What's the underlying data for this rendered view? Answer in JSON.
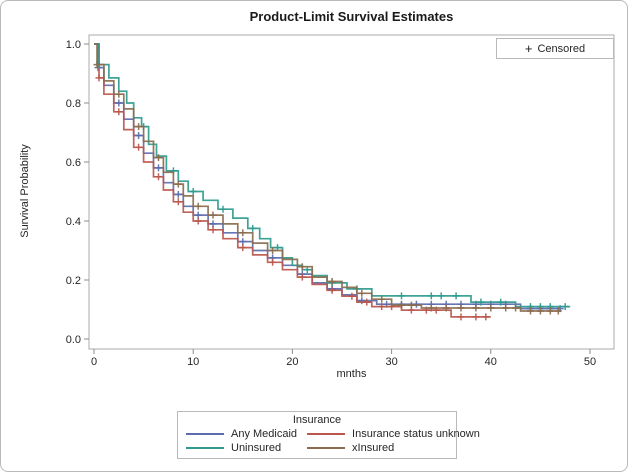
{
  "censored_box": {
    "marker": "+",
    "label": "Censored"
  },
  "legend": {
    "title": "Insurance"
  },
  "colors": {
    "frame": "#ababab",
    "tick": "#8c8c8c",
    "text": "#262626",
    "series_blue": "#5b6cae",
    "series_red": "#bb574d",
    "series_teal": "#2f9a8d",
    "series_brown": "#8b6b4d"
  },
  "chart_data": {
    "type": "line",
    "subtype": "kaplan-meier-step-survival",
    "title": "Product-Limit Survival Estimates",
    "xlabel": "mnths",
    "ylabel": "Survival Probability",
    "xlim": [
      0,
      50
    ],
    "ylim": [
      0.0,
      1.0
    ],
    "xticks": [
      0,
      10,
      20,
      30,
      40,
      50
    ],
    "yticks": [
      0.0,
      0.2,
      0.4,
      0.6,
      0.8,
      1.0
    ],
    "xtick_labels": [
      "0",
      "10",
      "20",
      "30",
      "40",
      "50"
    ],
    "ytick_labels": [
      "0.0",
      "0.2",
      "0.4",
      "0.6",
      "0.8",
      "1.0"
    ],
    "grid": false,
    "legend_position": "bottom",
    "legend_title": "Insurance",
    "censored_marker": "+",
    "series": [
      {
        "name": "Any Medicaid",
        "color": "#5b6cae",
        "steps": [
          [
            0,
            1.0
          ],
          [
            0.4,
            0.92
          ],
          [
            1,
            0.86
          ],
          [
            2,
            0.8
          ],
          [
            3,
            0.745
          ],
          [
            4,
            0.69
          ],
          [
            5,
            0.63
          ],
          [
            6,
            0.58
          ],
          [
            7,
            0.53
          ],
          [
            8,
            0.49
          ],
          [
            9,
            0.45
          ],
          [
            10,
            0.42
          ],
          [
            11.5,
            0.39
          ],
          [
            13,
            0.36
          ],
          [
            14.5,
            0.33
          ],
          [
            16,
            0.3
          ],
          [
            17.5,
            0.275
          ],
          [
            19,
            0.25
          ],
          [
            20.5,
            0.22
          ],
          [
            22,
            0.19
          ],
          [
            23.5,
            0.17
          ],
          [
            25,
            0.15
          ],
          [
            26.5,
            0.13
          ],
          [
            28.5,
            0.118
          ],
          [
            43,
            0.103
          ],
          [
            47,
            0.103
          ]
        ],
        "censored": [
          [
            0.4,
            0.92
          ],
          [
            2.5,
            0.8
          ],
          [
            4.5,
            0.69
          ],
          [
            6.5,
            0.58
          ],
          [
            8.5,
            0.49
          ],
          [
            10.5,
            0.42
          ],
          [
            12,
            0.39
          ],
          [
            15,
            0.33
          ],
          [
            18,
            0.275
          ],
          [
            21,
            0.22
          ],
          [
            24,
            0.17
          ],
          [
            27,
            0.13
          ],
          [
            29.5,
            0.118
          ],
          [
            31,
            0.118
          ],
          [
            32.5,
            0.118
          ],
          [
            34,
            0.118
          ],
          [
            35.5,
            0.118
          ],
          [
            37,
            0.118
          ],
          [
            38.5,
            0.118
          ],
          [
            40,
            0.118
          ],
          [
            41.5,
            0.118
          ],
          [
            44,
            0.103
          ],
          [
            45,
            0.103
          ],
          [
            46,
            0.103
          ],
          [
            47,
            0.103
          ]
        ]
      },
      {
        "name": "Insurance status unknown",
        "color": "#bb574d",
        "steps": [
          [
            0,
            1.0
          ],
          [
            0.5,
            0.885
          ],
          [
            1,
            0.83
          ],
          [
            2,
            0.77
          ],
          [
            3,
            0.71
          ],
          [
            4,
            0.65
          ],
          [
            5,
            0.6
          ],
          [
            6,
            0.55
          ],
          [
            7,
            0.505
          ],
          [
            8,
            0.465
          ],
          [
            9,
            0.43
          ],
          [
            10,
            0.4
          ],
          [
            11.5,
            0.37
          ],
          [
            13,
            0.34
          ],
          [
            14.5,
            0.31
          ],
          [
            16,
            0.285
          ],
          [
            17.5,
            0.26
          ],
          [
            19,
            0.235
          ],
          [
            20.5,
            0.21
          ],
          [
            22,
            0.185
          ],
          [
            23.5,
            0.165
          ],
          [
            25,
            0.145
          ],
          [
            26.5,
            0.125
          ],
          [
            28,
            0.11
          ],
          [
            31,
            0.098
          ],
          [
            36,
            0.075
          ],
          [
            40,
            0.075
          ]
        ],
        "censored": [
          [
            0.5,
            0.885
          ],
          [
            2.5,
            0.77
          ],
          [
            4.5,
            0.65
          ],
          [
            6.5,
            0.55
          ],
          [
            8.5,
            0.465
          ],
          [
            10.5,
            0.4
          ],
          [
            12,
            0.37
          ],
          [
            15,
            0.31
          ],
          [
            18,
            0.26
          ],
          [
            21,
            0.21
          ],
          [
            24,
            0.165
          ],
          [
            26,
            0.145
          ],
          [
            27.5,
            0.125
          ],
          [
            29,
            0.11
          ],
          [
            30,
            0.11
          ],
          [
            32,
            0.098
          ],
          [
            33.5,
            0.098
          ],
          [
            34.5,
            0.098
          ],
          [
            37,
            0.075
          ],
          [
            38.5,
            0.075
          ],
          [
            39.5,
            0.075
          ]
        ]
      },
      {
        "name": "Uninsured",
        "color": "#2f9a8d",
        "steps": [
          [
            0,
            1.0
          ],
          [
            0.5,
            0.93
          ],
          [
            1.5,
            0.885
          ],
          [
            2.5,
            0.84
          ],
          [
            3.3,
            0.8
          ],
          [
            4,
            0.75
          ],
          [
            4.8,
            0.72
          ],
          [
            5.5,
            0.66
          ],
          [
            6.3,
            0.62
          ],
          [
            7.3,
            0.57
          ],
          [
            8.5,
            0.535
          ],
          [
            9.5,
            0.5
          ],
          [
            11,
            0.47
          ],
          [
            12.5,
            0.44
          ],
          [
            14,
            0.41
          ],
          [
            15.5,
            0.375
          ],
          [
            16.7,
            0.34
          ],
          [
            17.8,
            0.31
          ],
          [
            19,
            0.275
          ],
          [
            20,
            0.25
          ],
          [
            21,
            0.235
          ],
          [
            22,
            0.215
          ],
          [
            23.5,
            0.19
          ],
          [
            25.5,
            0.17
          ],
          [
            28,
            0.146
          ],
          [
            38,
            0.125
          ],
          [
            42.5,
            0.11
          ],
          [
            48,
            0.11
          ]
        ],
        "censored": [
          [
            0.5,
            0.93
          ],
          [
            5,
            0.72
          ],
          [
            8,
            0.57
          ],
          [
            10,
            0.5
          ],
          [
            13,
            0.44
          ],
          [
            16,
            0.375
          ],
          [
            18.5,
            0.31
          ],
          [
            21.5,
            0.235
          ],
          [
            24,
            0.19
          ],
          [
            26.5,
            0.17
          ],
          [
            31,
            0.146
          ],
          [
            34,
            0.146
          ],
          [
            35,
            0.146
          ],
          [
            36.5,
            0.146
          ],
          [
            39,
            0.125
          ],
          [
            41,
            0.125
          ],
          [
            44,
            0.11
          ],
          [
            45,
            0.11
          ],
          [
            46,
            0.11
          ],
          [
            47.5,
            0.11
          ]
        ]
      },
      {
        "name": "xInsured",
        "color": "#8b6b4d",
        "steps": [
          [
            0,
            1.0
          ],
          [
            0.3,
            0.93
          ],
          [
            1,
            0.875
          ],
          [
            2,
            0.83
          ],
          [
            3,
            0.78
          ],
          [
            4,
            0.72
          ],
          [
            5,
            0.67
          ],
          [
            6,
            0.615
          ],
          [
            7,
            0.565
          ],
          [
            8,
            0.525
          ],
          [
            9,
            0.485
          ],
          [
            10,
            0.45
          ],
          [
            11.5,
            0.42
          ],
          [
            13,
            0.39
          ],
          [
            14.5,
            0.36
          ],
          [
            16,
            0.325
          ],
          [
            17.5,
            0.3
          ],
          [
            19,
            0.27
          ],
          [
            20.5,
            0.245
          ],
          [
            22,
            0.21
          ],
          [
            23.5,
            0.195
          ],
          [
            25,
            0.175
          ],
          [
            26.5,
            0.155
          ],
          [
            28,
            0.135
          ],
          [
            30,
            0.115
          ],
          [
            33,
            0.105
          ],
          [
            43,
            0.095
          ],
          [
            47,
            0.095
          ]
        ],
        "censored": [
          [
            0.3,
            0.93
          ],
          [
            2.5,
            0.83
          ],
          [
            4.5,
            0.72
          ],
          [
            6.5,
            0.615
          ],
          [
            8.5,
            0.525
          ],
          [
            10.5,
            0.45
          ],
          [
            12,
            0.42
          ],
          [
            15,
            0.36
          ],
          [
            18,
            0.3
          ],
          [
            21,
            0.245
          ],
          [
            24,
            0.195
          ],
          [
            27,
            0.155
          ],
          [
            29,
            0.135
          ],
          [
            31,
            0.115
          ],
          [
            32,
            0.115
          ],
          [
            34,
            0.105
          ],
          [
            35.5,
            0.105
          ],
          [
            37,
            0.105
          ],
          [
            38.5,
            0.105
          ],
          [
            40,
            0.105
          ],
          [
            41.5,
            0.105
          ],
          [
            42.5,
            0.105
          ],
          [
            44,
            0.095
          ],
          [
            45,
            0.095
          ],
          [
            46,
            0.095
          ],
          [
            46.8,
            0.095
          ]
        ]
      }
    ]
  }
}
